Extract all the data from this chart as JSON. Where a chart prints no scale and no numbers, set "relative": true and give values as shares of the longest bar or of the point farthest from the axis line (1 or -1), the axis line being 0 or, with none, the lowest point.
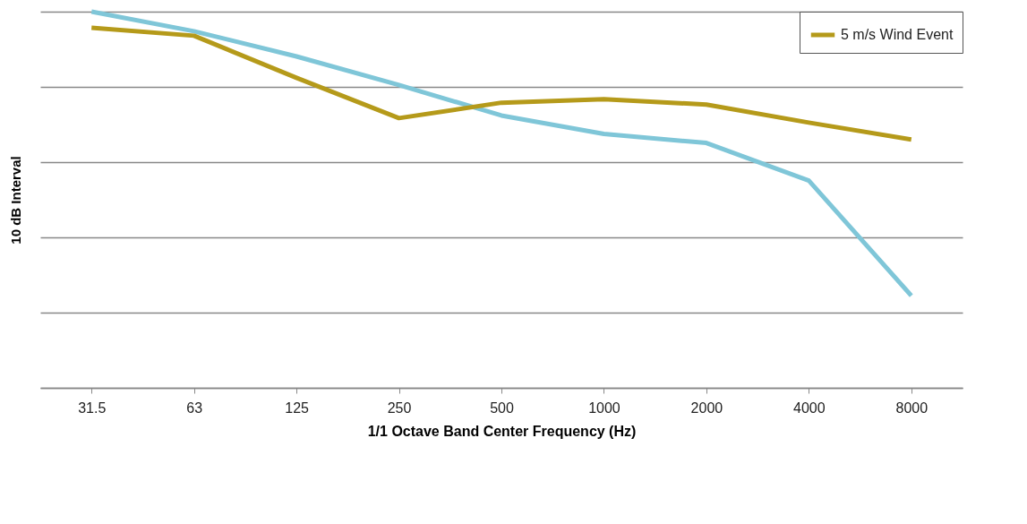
{
  "chart_data": {
    "type": "line",
    "relative": true,
    "xlabel": "1/1 Octave Band Center Frequency (Hz)",
    "ylabel": "10 dB Interval",
    "categories": [
      "31.5",
      "63",
      "125",
      "250",
      "500",
      "1000",
      "2000",
      "4000",
      "8000"
    ],
    "grid": "y",
    "legend": "top right",
    "line_style": "solid",
    "marker": "none",
    "series": [
      {
        "color": "#7fc6d8",
        "values": [
          1,
          0.948,
          0.881,
          0.805,
          0.724,
          0.675,
          0.651,
          0.551,
          0.245
        ]
      },
      {
        "name": "5 m/s Wind Event",
        "color": "#b59a1a",
        "values": [
          0.957,
          0.936,
          0.824,
          0.717,
          0.758,
          0.767,
          0.753,
          0.705,
          0.66
        ]
      }
    ]
  }
}
